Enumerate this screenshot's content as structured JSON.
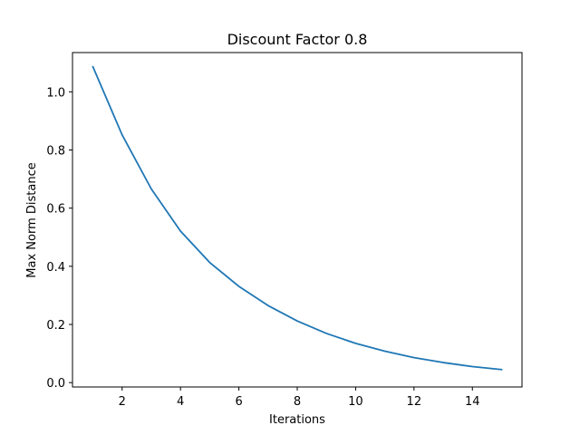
{
  "chart_data": {
    "type": "line",
    "title": "Discount Factor 0.8",
    "xlabel": "Iterations",
    "ylabel": "Max Norm Distance",
    "xlim": [
      0.3,
      15.7
    ],
    "ylim": [
      -0.015,
      1.135
    ],
    "xticks": [
      2,
      4,
      6,
      8,
      10,
      12,
      14
    ],
    "xtick_labels": [
      "2",
      "4",
      "6",
      "8",
      "10",
      "12",
      "14"
    ],
    "yticks": [
      0.0,
      0.2,
      0.4,
      0.6,
      0.8,
      1.0
    ],
    "ytick_labels": [
      "0.0",
      "0.2",
      "0.4",
      "0.6",
      "0.8",
      "1.0"
    ],
    "grid": false,
    "series": [
      {
        "color": "#1f77b4",
        "x": [
          1,
          2,
          3,
          4,
          5,
          6,
          7,
          8,
          9,
          10,
          11,
          12,
          13,
          14,
          15
        ],
        "y": [
          1.086,
          0.852,
          0.666,
          0.521,
          0.413,
          0.331,
          0.265,
          0.212,
          0.169,
          0.135,
          0.108,
          0.086,
          0.069,
          0.055,
          0.045
        ]
      }
    ]
  }
}
